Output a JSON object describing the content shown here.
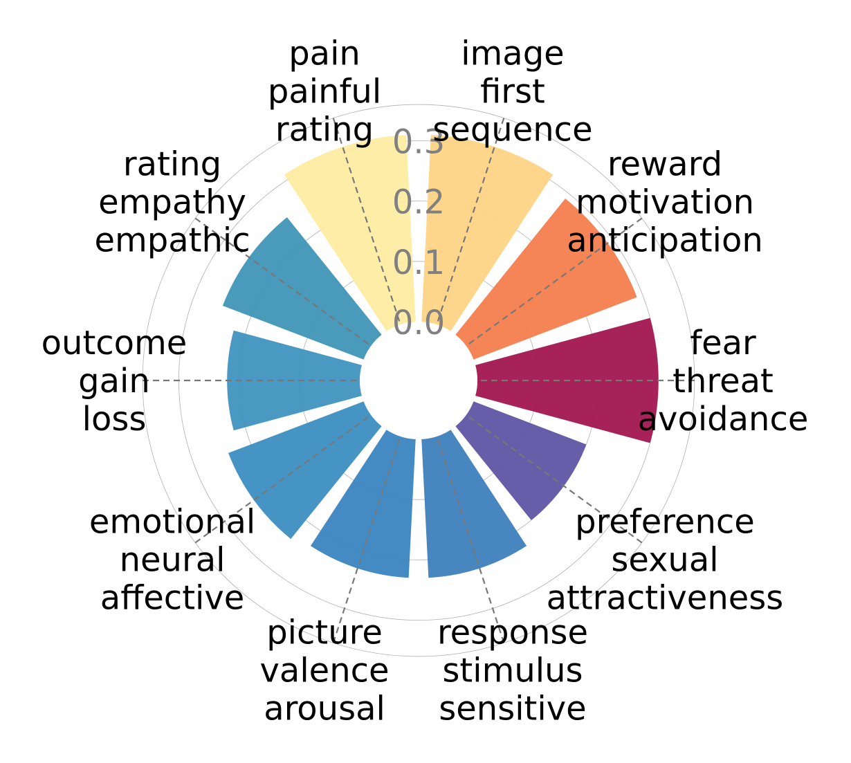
{
  "chart_data": {
    "type": "radial-bar",
    "title": "",
    "radial_ticks": [
      "0.0",
      "0.1",
      "0.2",
      "0.3"
    ],
    "radial_tick_values": [
      0.0,
      0.1,
      0.2,
      0.3
    ],
    "rmax": 0.36,
    "inner_hole": 0.1,
    "gridlines": true,
    "categories": [
      {
        "lines": [
          "fear",
          "threat",
          "avoidance"
        ],
        "value": 0.3,
        "color": "#a11650"
      },
      {
        "lines": [
          "reward",
          "motivation",
          "anticipation"
        ],
        "value": 0.29,
        "color": "#f47e4e"
      },
      {
        "lines": [
          "image",
          "first",
          "sequence"
        ],
        "value": 0.31,
        "color": "#fdd485"
      },
      {
        "lines": [
          "pain",
          "painful",
          "rating"
        ],
        "value": 0.31,
        "color": "#feeca2"
      },
      {
        "lines": [
          "rating",
          "empathy",
          "empathic"
        ],
        "value": 0.25,
        "color": "#3f95b7"
      },
      {
        "lines": [
          "outcome",
          "gain",
          "loss"
        ],
        "value": 0.22,
        "color": "#3f94c0"
      },
      {
        "lines": [
          "emotional",
          "neural",
          "affective"
        ],
        "value": 0.24,
        "color": "#3b8ec1"
      },
      {
        "lines": [
          "picture",
          "valence",
          "arousal"
        ],
        "value": 0.23,
        "color": "#3a85c0"
      },
      {
        "lines": [
          "response",
          "stimulus",
          "sensitive"
        ],
        "value": 0.23,
        "color": "#3d7fba"
      },
      {
        "lines": [
          "preference",
          "sexual",
          "attractiveness"
        ],
        "value": 0.2,
        "color": "#5f54a3"
      }
    ]
  }
}
